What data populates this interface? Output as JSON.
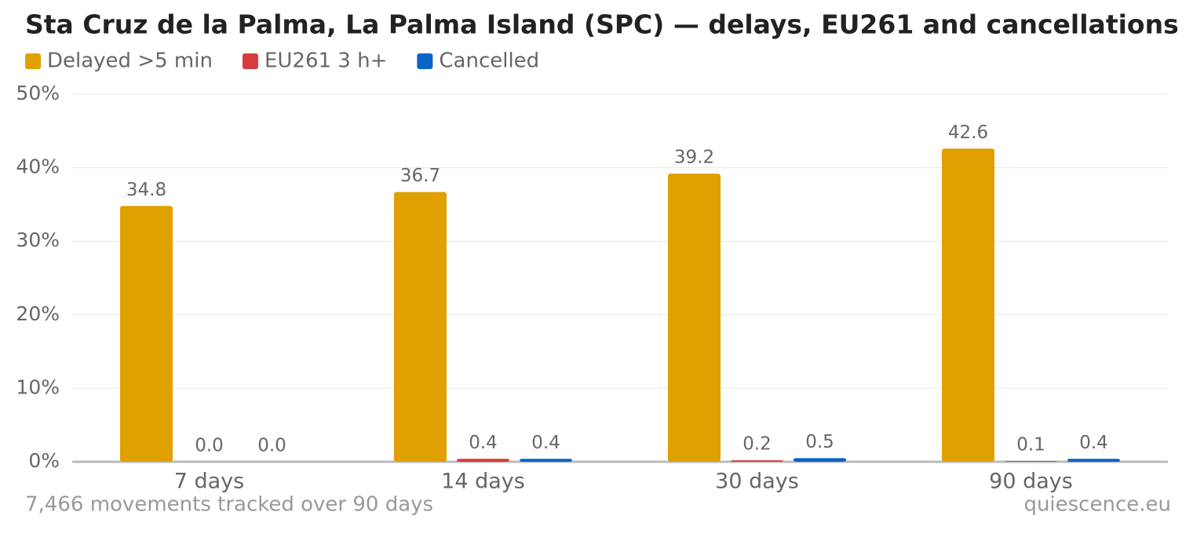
{
  "chart_data": {
    "type": "bar",
    "title": "Sta Cruz de la Palma, La Palma Island (SPC) — delays, EU261 and cancellations",
    "categories": [
      "7 days",
      "14 days",
      "30 days",
      "90 days"
    ],
    "series": [
      {
        "name": "Delayed >5 min",
        "color": "#e0a000",
        "values": [
          34.8,
          36.7,
          39.2,
          42.6
        ],
        "value_labels": [
          "34.8",
          "36.7",
          "39.2",
          "42.6"
        ]
      },
      {
        "name": "EU261 3 h+",
        "color": "#d63c3c",
        "values": [
          0,
          0.4,
          0.2,
          0.1
        ],
        "value_labels": [
          "0.0",
          "0.4",
          "0.2",
          "0.1"
        ]
      },
      {
        "name": "Cancelled",
        "color": "#0a64c8",
        "values": [
          0,
          0.4,
          0.5,
          0.4
        ],
        "value_labels": [
          "0.0",
          "0.4",
          "0.5",
          "0.4"
        ]
      }
    ],
    "ylim": [
      0,
      50
    ],
    "yticks": [
      {
        "value": 0,
        "label": "0%"
      },
      {
        "value": 10,
        "label": "10%"
      },
      {
        "value": 20,
        "label": "20%"
      },
      {
        "value": 30,
        "label": "30%"
      },
      {
        "value": 40,
        "label": "40%"
      },
      {
        "value": 50,
        "label": "50%"
      }
    ],
    "grid": true,
    "legend": "top-left",
    "footnote": "7,466 movements tracked over 90 days",
    "source": "quiescence.eu"
  }
}
